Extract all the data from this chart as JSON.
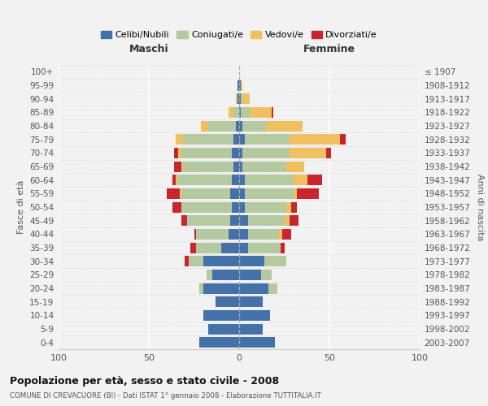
{
  "age_groups": [
    "0-4",
    "5-9",
    "10-14",
    "15-19",
    "20-24",
    "25-29",
    "30-34",
    "35-39",
    "40-44",
    "45-49",
    "50-54",
    "55-59",
    "60-64",
    "65-69",
    "70-74",
    "75-79",
    "80-84",
    "85-89",
    "90-94",
    "95-99",
    "100+"
  ],
  "birth_years": [
    "2003-2007",
    "1998-2002",
    "1993-1997",
    "1988-1992",
    "1983-1987",
    "1978-1982",
    "1973-1977",
    "1968-1972",
    "1963-1967",
    "1958-1962",
    "1953-1957",
    "1948-1952",
    "1943-1947",
    "1938-1942",
    "1933-1937",
    "1928-1932",
    "1923-1927",
    "1918-1922",
    "1913-1917",
    "1908-1912",
    "≤ 1907"
  ],
  "colors": {
    "celibi": "#4472a8",
    "coniugati": "#b5c9a0",
    "vedovi": "#f0c060",
    "divorziati": "#c8262e"
  },
  "maschi": {
    "celibi": [
      22,
      17,
      20,
      13,
      20,
      15,
      20,
      10,
      6,
      5,
      4,
      5,
      4,
      3,
      4,
      3,
      2,
      0,
      1,
      1,
      0
    ],
    "coniugati": [
      0,
      0,
      0,
      0,
      2,
      3,
      8,
      14,
      18,
      24,
      28,
      27,
      30,
      28,
      28,
      28,
      15,
      3,
      0,
      0,
      0
    ],
    "vedovi": [
      0,
      0,
      0,
      0,
      0,
      0,
      0,
      0,
      0,
      0,
      0,
      1,
      1,
      1,
      2,
      4,
      4,
      3,
      1,
      0,
      0
    ],
    "divorziati": [
      0,
      0,
      0,
      0,
      0,
      0,
      2,
      3,
      1,
      3,
      5,
      7,
      2,
      4,
      2,
      0,
      0,
      0,
      0,
      0,
      0
    ]
  },
  "femmine": {
    "nubili": [
      20,
      13,
      17,
      13,
      16,
      12,
      14,
      5,
      5,
      5,
      3,
      3,
      3,
      2,
      2,
      3,
      2,
      1,
      1,
      1,
      0
    ],
    "coniugate": [
      0,
      0,
      0,
      0,
      5,
      6,
      12,
      18,
      17,
      20,
      23,
      27,
      27,
      24,
      26,
      25,
      13,
      5,
      1,
      0,
      0
    ],
    "vedove": [
      0,
      0,
      0,
      0,
      0,
      0,
      0,
      0,
      2,
      3,
      3,
      2,
      8,
      10,
      20,
      28,
      20,
      12,
      4,
      1,
      0
    ],
    "divorziate": [
      0,
      0,
      0,
      0,
      0,
      0,
      0,
      2,
      5,
      5,
      3,
      12,
      8,
      0,
      3,
      3,
      0,
      1,
      0,
      0,
      0
    ]
  },
  "title": "Popolazione per età, sesso e stato civile - 2008",
  "subtitle": "COMUNE DI CREVACUORE (BI) - Dati ISTAT 1° gennaio 2008 - Elaborazione TUTTITALIA.IT",
  "xlabel_left": "Maschi",
  "xlabel_right": "Femmine",
  "ylabel_left": "Fasce di età",
  "ylabel_right": "Anni di nascita",
  "legend_labels": [
    "Celibi/Nubili",
    "Coniugati/e",
    "Vedovi/e",
    "Divorziati/e"
  ],
  "xlim": 100,
  "bg_color": "#f2f2f2",
  "bar_height": 0.78
}
